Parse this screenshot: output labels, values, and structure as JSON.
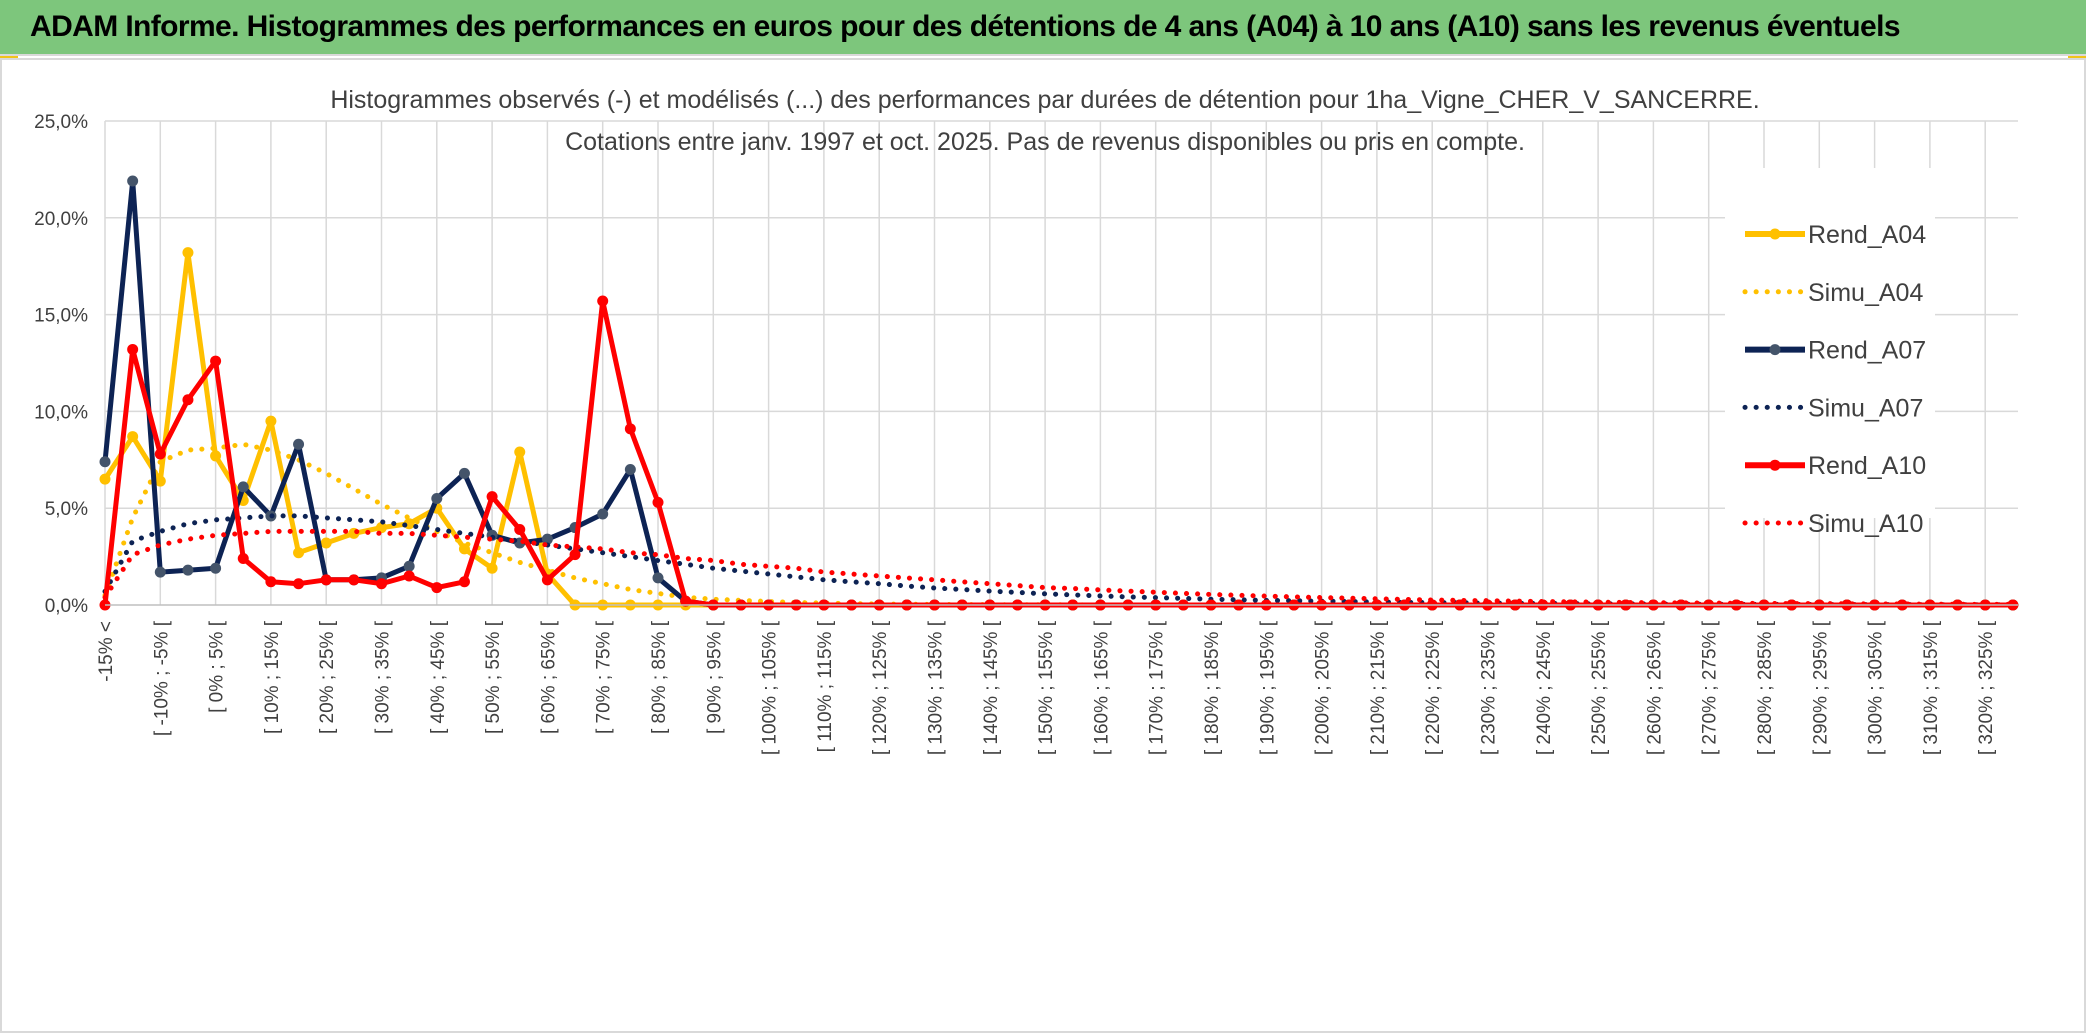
{
  "banner": {
    "title": "ADAM Informe. Histogrammes des performances en euros pour des détentions de 4 ans (A04) à 10 ans (A10) sans les revenus éventuels"
  },
  "colors": {
    "banner_bg": "#7dc67c",
    "a04": "#ffc000",
    "a07": "#0d2354",
    "a07_marker": "#44546a",
    "a10": "#ff0000",
    "grid": "#d9d9d9",
    "text": "#404040"
  },
  "chart_data": {
    "type": "line",
    "title_line1": "Histogrammes observés (-) et modélisés (...) des performances par durées de détention pour 1ha_Vigne_CHER_V_SANCERRE.",
    "title_line2": "Cotations entre janv. 1997 et oct. 2025. Pas de revenus disponibles ou pris en compte.",
    "ylim": [
      0,
      0.25
    ],
    "yticks": [
      0,
      0.05,
      0.1,
      0.15,
      0.2,
      0.25
    ],
    "ytick_labels": [
      "0,0%",
      "5,0%",
      "10,0%",
      "15,0%",
      "20,0%",
      "25,0%"
    ],
    "categories": [
      "-15% <",
      "[ -15% ; -10% [",
      "[ -10% ; -5% [",
      "[ -5% ; 0% [",
      "[ 0% ; 5% [",
      "[ 5% ; 10% [",
      "[ 10% ; 15% [",
      "[ 15% ; 20% [",
      "[ 20% ; 25% [",
      "[ 25% ; 30% [",
      "[ 30% ; 35% [",
      "[ 35% ; 40% [",
      "[ 40% ; 45% [",
      "[ 45% ; 50% [",
      "[ 50% ; 55% [",
      "[ 55% ; 60% [",
      "[ 60% ; 65% [",
      "[ 65% ; 70% [",
      "[ 70% ; 75% [",
      "[ 75% ; 80% [",
      "[ 80% ; 85% [",
      "[ 85% ; 90% [",
      "[ 90% ; 95% [",
      "[ 95% ; 100% [",
      "[ 100% ; 105% [",
      "[ 105% ; 110% [",
      "[ 110% ; 115% [",
      "[ 115% ; 120% [",
      "[ 120% ; 125% [",
      "[ 125% ; 130% [",
      "[ 130% ; 135% [",
      "[ 135% ; 140% [",
      "[ 140% ; 145% [",
      "[ 145% ; 150% [",
      "[ 150% ; 155% [",
      "[ 155% ; 160% [",
      "[ 160% ; 165% [",
      "[ 165% ; 170% [",
      "[ 170% ; 175% [",
      "[ 175% ; 180% [",
      "[ 180% ; 185% [",
      "[ 185% ; 190% [",
      "[ 190% ; 195% [",
      "[ 195% ; 200% [",
      "[ 200% ; 205% [",
      "[ 205% ; 210% [",
      "[ 210% ; 215% [",
      "[ 215% ; 220% [",
      "[ 220% ; 225% [",
      "[ 225% ; 230% [",
      "[ 230% ; 235% [",
      "[ 235% ; 240% [",
      "[ 240% ; 245% [",
      "[ 245% ; 250% [",
      "[ 250% ; 255% [",
      "[ 255% ; 260% [",
      "[ 260% ; 265% [",
      "[ 265% ; 270% [",
      "[ 270% ; 275% [",
      "[ 275% ; 280% [",
      "[ 280% ; 285% [",
      "[ 285% ; 290% [",
      "[ 290% ; 295% [",
      "[ 295% ; 300% [",
      "[ 300% ; 305% [",
      "[ 305% ; 310% [",
      "[ 310% ; 315% [",
      "[ 315% ; 320% [",
      "[ 320% ; 325% [",
      "[ 325% ; 330% ["
    ],
    "visible_tick_labels": [
      "-15% <",
      "[ -10% ; -5% [",
      "[ 0% ; 5% [",
      "[ 10% ; 15% [",
      "[ 20% ; 25% [",
      "[ 30% ; 35% [",
      "[ 40% ; 45% [",
      "[ 50% ; 55% [",
      "[ 60% ; 65% [",
      "[ 70% ; 75% [",
      "[ 80% ; 85% [",
      "[ 90% ; 95% [",
      "[ 100% ; 105% [",
      "[ 110% ; 115% [",
      "[ 120% ; 125% [",
      "[ 130% ; 135% [",
      "[ 140% ; 145% [",
      "[ 150% ; 155% [",
      "[ 160% ; 165% [",
      "[ 170% ; 175% [",
      "[ 180% ; 185% [",
      "[ 190% ; 195% [",
      "[ 200% ; 205% [",
      "[ 210% ; 215% [",
      "[ 220% ; 225% [",
      "[ 230% ; 235% [",
      "[ 240% ; 245% [",
      "[ 250% ; 255% [",
      "[ 260% ; 265% [",
      "[ 270% ; 275% [",
      "[ 280% ; 285% [",
      "[ 290% ; 295% [",
      "[ 300% ; 305% [",
      "[ 310% ; 315% [",
      "[ 320% ; 325% ["
    ],
    "series": [
      {
        "name": "Rend_A04",
        "style": "solid",
        "color": "#ffc000",
        "marker": "#ffc000",
        "values": [
          0.065,
          0.087,
          0.064,
          0.182,
          0.077,
          0.054,
          0.095,
          0.027,
          0.032,
          0.037,
          0.04,
          0.042,
          0.05,
          0.029,
          0.019,
          0.079,
          0.016,
          0.0,
          0.0,
          0.0,
          0.0,
          0.0,
          0.0,
          0.0,
          0.0,
          0.0,
          0.0,
          0.0,
          0.0,
          0.0,
          0.0,
          0.0,
          0.0,
          0.0,
          0.0,
          0.0,
          0.0,
          0.0,
          0.0,
          0.0,
          0.0,
          0.0,
          0.0,
          0.0,
          0.0,
          0.0,
          0.0,
          0.0,
          0.0,
          0.0,
          0.0,
          0.0,
          0.0,
          0.0,
          0.0,
          0.0,
          0.0,
          0.0,
          0.0,
          0.0,
          0.0,
          0.0,
          0.0,
          0.0,
          0.0,
          0.0,
          0.0,
          0.0,
          0.0,
          0.0
        ]
      },
      {
        "name": "Simu_A04",
        "style": "dotted",
        "color": "#ffc000",
        "values": [
          0.005,
          0.045,
          0.074,
          0.08,
          0.081,
          0.083,
          0.08,
          0.075,
          0.068,
          0.06,
          0.052,
          0.045,
          0.038,
          0.032,
          0.027,
          0.022,
          0.018,
          0.014,
          0.011,
          0.008,
          0.006,
          0.004,
          0.003,
          0.0024,
          0.0018,
          0.0013,
          0.001,
          0.0007,
          0.0005,
          0.0004,
          0.0003,
          0.0002,
          0.0002,
          0.0001,
          0.0001,
          0.0001,
          0.0,
          0.0,
          0.0,
          0.0,
          0.0,
          0.0,
          0.0,
          0.0,
          0.0,
          0.0,
          0.0,
          0.0,
          0.0,
          0.0,
          0.0,
          0.0,
          0.0,
          0.0,
          0.0,
          0.0,
          0.0,
          0.0,
          0.0,
          0.0,
          0.0,
          0.0,
          0.0,
          0.0,
          0.0,
          0.0,
          0.0,
          0.0,
          0.0,
          0.0
        ]
      },
      {
        "name": "Rend_A07",
        "style": "solid",
        "color": "#0d2354",
        "marker": "#44546a",
        "values": [
          0.074,
          0.219,
          0.017,
          0.018,
          0.019,
          0.061,
          0.046,
          0.083,
          0.013,
          0.013,
          0.014,
          0.02,
          0.055,
          0.068,
          0.036,
          0.032,
          0.034,
          0.04,
          0.047,
          0.07,
          0.014,
          0.002,
          0.0,
          0.0,
          0.0,
          0.0,
          0.0,
          0.0,
          0.0,
          0.0,
          0.0,
          0.0,
          0.0,
          0.0,
          0.0,
          0.0,
          0.0,
          0.0,
          0.0,
          0.0,
          0.0,
          0.0,
          0.0,
          0.0,
          0.0,
          0.0,
          0.0,
          0.0,
          0.0,
          0.0,
          0.0,
          0.0,
          0.0,
          0.0,
          0.0,
          0.0,
          0.0,
          0.0,
          0.0,
          0.0,
          0.0,
          0.0,
          0.0,
          0.0,
          0.0,
          0.0,
          0.0,
          0.0,
          0.0,
          0.0
        ]
      },
      {
        "name": "Simu_A07",
        "style": "dotted",
        "color": "#0d2354",
        "values": [
          0.007,
          0.033,
          0.038,
          0.042,
          0.044,
          0.045,
          0.046,
          0.046,
          0.045,
          0.044,
          0.043,
          0.041,
          0.039,
          0.037,
          0.035,
          0.033,
          0.031,
          0.029,
          0.027,
          0.025,
          0.023,
          0.021,
          0.019,
          0.0175,
          0.016,
          0.0145,
          0.013,
          0.012,
          0.011,
          0.0098,
          0.0088,
          0.008,
          0.0072,
          0.0065,
          0.0058,
          0.0052,
          0.0047,
          0.0042,
          0.0038,
          0.0034,
          0.003,
          0.0027,
          0.0024,
          0.0022,
          0.002,
          0.0018,
          0.0016,
          0.0014,
          0.0013,
          0.0012,
          0.001,
          0.0009,
          0.0008,
          0.0007,
          0.0006,
          0.0005,
          0.0005,
          0.0004,
          0.0004,
          0.0003,
          0.0003,
          0.0003,
          0.0002,
          0.0002,
          0.0002,
          0.0002,
          0.0001,
          0.0001,
          0.0001,
          0.0001
        ]
      },
      {
        "name": "Rend_A10",
        "style": "solid",
        "color": "#ff0000",
        "marker": "#ff0000",
        "values": [
          0.0,
          0.132,
          0.078,
          0.106,
          0.126,
          0.024,
          0.012,
          0.011,
          0.013,
          0.013,
          0.011,
          0.015,
          0.009,
          0.012,
          0.056,
          0.039,
          0.013,
          0.026,
          0.157,
          0.091,
          0.053,
          0.002,
          0.0,
          0.0,
          0.0,
          0.0,
          0.0,
          0.0,
          0.0,
          0.0,
          0.0,
          0.0,
          0.0,
          0.0,
          0.0,
          0.0,
          0.0,
          0.0,
          0.0,
          0.0,
          0.0,
          0.0,
          0.0,
          0.0,
          0.0,
          0.0,
          0.0,
          0.0,
          0.0,
          0.0,
          0.0,
          0.0,
          0.0,
          0.0,
          0.0,
          0.0,
          0.0,
          0.0,
          0.0,
          0.0,
          0.0,
          0.0,
          0.0,
          0.0,
          0.0,
          0.0,
          0.0,
          0.0,
          0.0,
          0.0
        ]
      },
      {
        "name": "Simu_A10",
        "style": "dotted",
        "color": "#ff0000",
        "values": [
          0.004,
          0.026,
          0.031,
          0.034,
          0.036,
          0.037,
          0.038,
          0.038,
          0.038,
          0.038,
          0.037,
          0.037,
          0.036,
          0.035,
          0.034,
          0.033,
          0.031,
          0.03,
          0.029,
          0.027,
          0.026,
          0.024,
          0.023,
          0.021,
          0.02,
          0.019,
          0.017,
          0.016,
          0.015,
          0.014,
          0.013,
          0.012,
          0.011,
          0.01,
          0.009,
          0.0085,
          0.0078,
          0.0072,
          0.0066,
          0.006,
          0.0055,
          0.005,
          0.0046,
          0.0042,
          0.0038,
          0.0035,
          0.0032,
          0.0029,
          0.0026,
          0.0024,
          0.0022,
          0.002,
          0.0018,
          0.0016,
          0.0015,
          0.0013,
          0.0012,
          0.0011,
          0.001,
          0.0009,
          0.0008,
          0.0007,
          0.0007,
          0.0006,
          0.0005,
          0.0005,
          0.0004,
          0.0004,
          0.0003,
          0.0003
        ]
      }
    ],
    "legend": [
      "Rend_A04",
      "Simu_A04",
      "Rend_A07",
      "Simu_A07",
      "Rend_A10",
      "Simu_A10"
    ],
    "legend_position": "right",
    "grid": true
  }
}
